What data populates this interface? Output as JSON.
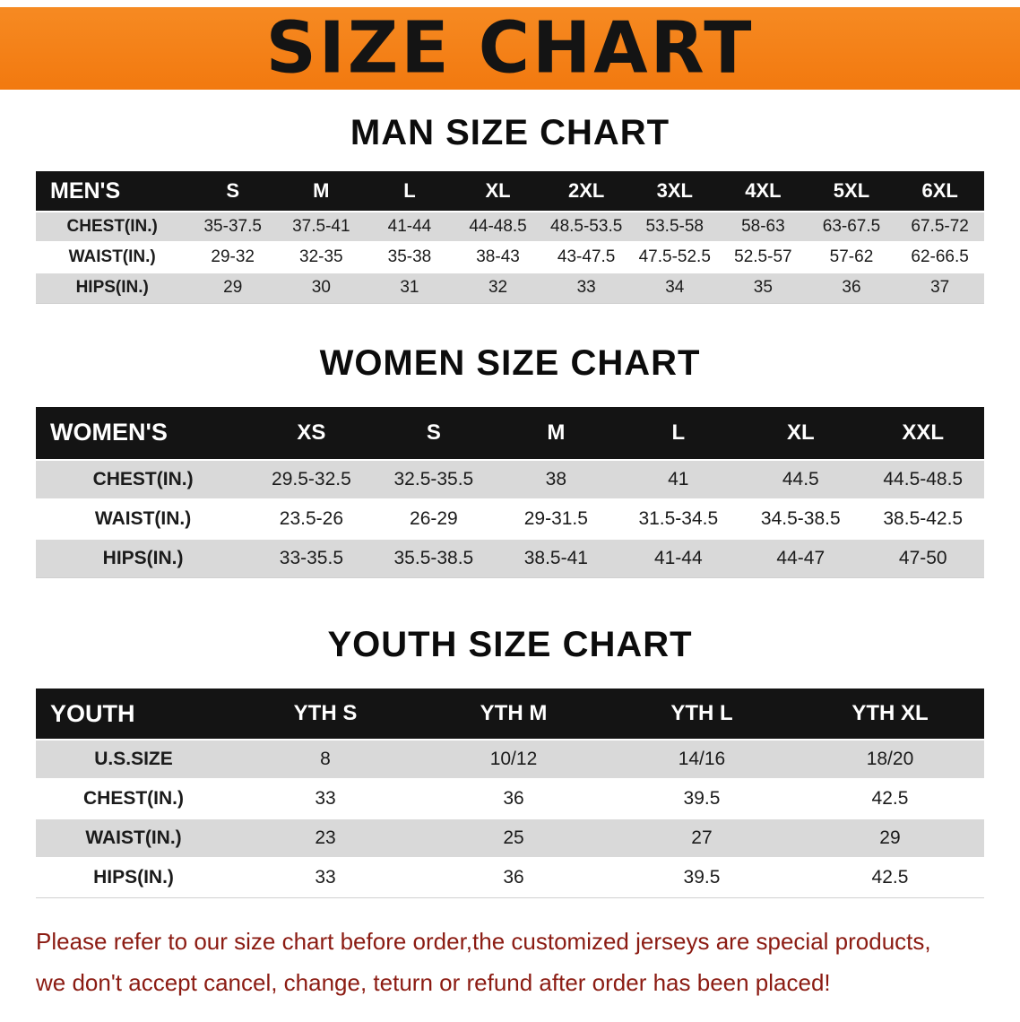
{
  "banner": {
    "title": "SIZE CHART",
    "background_color": "#f2790f",
    "text_color": "#141414"
  },
  "sections": {
    "men": {
      "heading": "MAN SIZE CHART",
      "table": {
        "corner": "MEN'S",
        "columns": [
          "S",
          "M",
          "L",
          "XL",
          "2XL",
          "3XL",
          "4XL",
          "5XL",
          "6XL"
        ],
        "rows": [
          {
            "label": "CHEST(IN.)",
            "values": [
              "35-37.5",
              "37.5-41",
              "41-44",
              "44-48.5",
              "48.5-53.5",
              "53.5-58",
              "58-63",
              "63-67.5",
              "67.5-72"
            ]
          },
          {
            "label": "WAIST(IN.)",
            "values": [
              "29-32",
              "32-35",
              "35-38",
              "38-43",
              "43-47.5",
              "47.5-52.5",
              "52.5-57",
              "57-62",
              "62-66.5"
            ]
          },
          {
            "label": "HIPS(IN.)",
            "values": [
              "29",
              "30",
              "31",
              "32",
              "33",
              "34",
              "35",
              "36",
              "37"
            ]
          }
        ]
      }
    },
    "women": {
      "heading": "WOMEN SIZE CHART",
      "table": {
        "corner": "WOMEN'S",
        "columns": [
          "XS",
          "S",
          "M",
          "L",
          "XL",
          "XXL"
        ],
        "rows": [
          {
            "label": "CHEST(IN.)",
            "values": [
              "29.5-32.5",
              "32.5-35.5",
              "38",
              "41",
              "44.5",
              "44.5-48.5"
            ]
          },
          {
            "label": "WAIST(IN.)",
            "values": [
              "23.5-26",
              "26-29",
              "29-31.5",
              "31.5-34.5",
              "34.5-38.5",
              "38.5-42.5"
            ]
          },
          {
            "label": "HIPS(IN.)",
            "values": [
              "33-35.5",
              "35.5-38.5",
              "38.5-41",
              "41-44",
              "44-47",
              "47-50"
            ]
          }
        ]
      }
    },
    "youth": {
      "heading": "YOUTH SIZE CHART",
      "table": {
        "corner": "YOUTH",
        "columns": [
          "YTH S",
          "YTH M",
          "YTH L",
          "YTH XL"
        ],
        "rows": [
          {
            "label": "U.S.SIZE",
            "values": [
              "8",
              "10/12",
              "14/16",
              "18/20"
            ]
          },
          {
            "label": "CHEST(IN.)",
            "values": [
              "33",
              "36",
              "39.5",
              "42.5"
            ]
          },
          {
            "label": "WAIST(IN.)",
            "values": [
              "23",
              "25",
              "27",
              "29"
            ]
          },
          {
            "label": "HIPS(IN.)",
            "values": [
              "33",
              "36",
              "39.5",
              "42.5"
            ]
          }
        ]
      }
    }
  },
  "footer": {
    "line1": "Please refer to our size chart before order,the customized jerseys are special products,",
    "line2": "we don't accept cancel, change, teturn or refund after order has been placed!",
    "text_color": "#8b1b12"
  },
  "colors": {
    "header_band": "#141414",
    "row_stripe": "#d9d9d9"
  }
}
